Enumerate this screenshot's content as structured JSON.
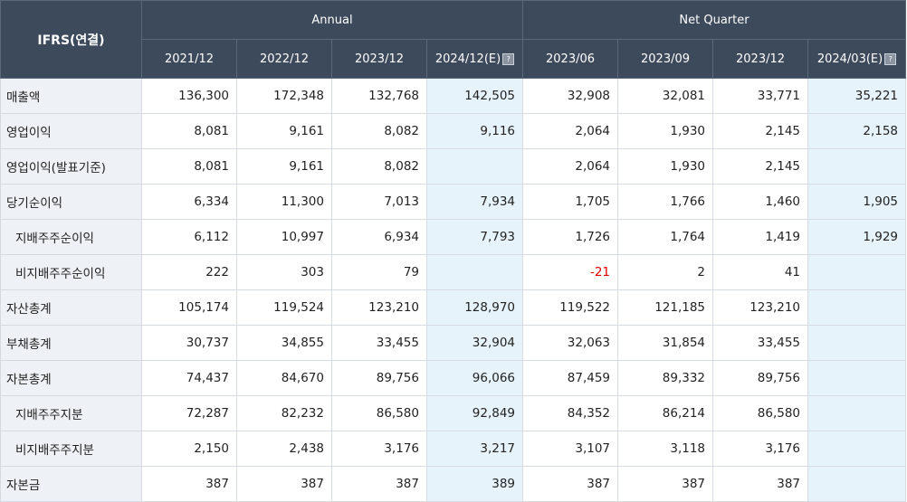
{
  "header": {
    "corner": "IFRS(연결)",
    "annual": "Annual",
    "quarter": "Net Quarter",
    "cols": [
      "2021/12",
      "2022/12",
      "2023/12",
      "2024/12(E)",
      "2023/06",
      "2023/09",
      "2023/12",
      "2024/03(E)"
    ]
  },
  "rows": [
    {
      "label": "매출액",
      "values": [
        "136,300",
        "172,348",
        "132,768",
        "142,505",
        "32,908",
        "32,081",
        "33,771",
        "35,221"
      ]
    },
    {
      "label": "영업이익",
      "values": [
        "8,081",
        "9,161",
        "8,082",
        "9,116",
        "2,064",
        "1,930",
        "2,145",
        "2,158"
      ]
    },
    {
      "label": "영업이익(발표기준)",
      "values": [
        "8,081",
        "9,161",
        "8,082",
        "",
        "2,064",
        "1,930",
        "2,145",
        ""
      ]
    },
    {
      "label": "당기순이익",
      "values": [
        "6,334",
        "11,300",
        "7,013",
        "7,934",
        "1,705",
        "1,766",
        "1,460",
        "1,905"
      ]
    },
    {
      "label": "지배주주순이익",
      "values": [
        "6,112",
        "10,997",
        "6,934",
        "7,793",
        "1,726",
        "1,764",
        "1,419",
        "1,929"
      ]
    },
    {
      "label": "비지배주주순이익",
      "values": [
        "222",
        "303",
        "79",
        "",
        "-21",
        "2",
        "41",
        ""
      ]
    },
    {
      "label": "자산총계",
      "values": [
        "105,174",
        "119,524",
        "123,210",
        "128,970",
        "119,522",
        "121,185",
        "123,210",
        ""
      ]
    },
    {
      "label": "부채총계",
      "values": [
        "30,737",
        "34,855",
        "33,455",
        "32,904",
        "32,063",
        "31,854",
        "33,455",
        ""
      ]
    },
    {
      "label": "자본총계",
      "values": [
        "74,437",
        "84,670",
        "89,756",
        "96,066",
        "87,459",
        "89,332",
        "89,756",
        ""
      ]
    },
    {
      "label": "지배주주지분",
      "values": [
        "72,287",
        "82,232",
        "86,580",
        "92,849",
        "84,352",
        "86,214",
        "86,580",
        ""
      ]
    },
    {
      "label": "비지배주주지분",
      "values": [
        "2,150",
        "2,438",
        "3,176",
        "3,217",
        "3,107",
        "3,118",
        "3,176",
        ""
      ]
    },
    {
      "label": "자본금",
      "values": [
        "387",
        "387",
        "387",
        "389",
        "387",
        "387",
        "387",
        ""
      ]
    }
  ]
}
